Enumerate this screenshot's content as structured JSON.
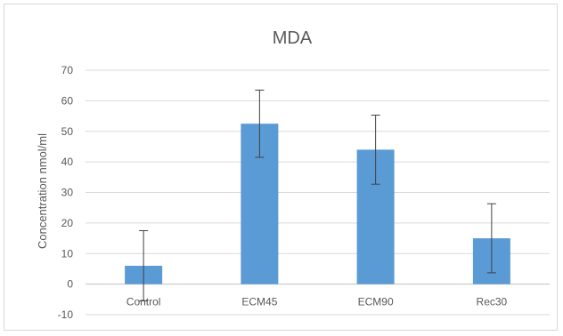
{
  "chart_data": {
    "type": "bar",
    "title": "MDA",
    "xlabel": "",
    "ylabel": "Concentration nmol/ml",
    "categories": [
      "Control",
      "ECM45",
      "ECM90",
      "Rec30"
    ],
    "values": [
      6,
      52.5,
      44,
      15
    ],
    "error": [
      11.5,
      11,
      11.3,
      11.3
    ],
    "ylim": [
      -10,
      70
    ],
    "yticks": [
      -10,
      0,
      10,
      20,
      30,
      40,
      50,
      60,
      70
    ],
    "grid": true,
    "legend": "none",
    "bar_color": "#5b9bd5",
    "grid_color": "#d9d9d9",
    "error_color": "#404040",
    "text_color": "#595959"
  }
}
